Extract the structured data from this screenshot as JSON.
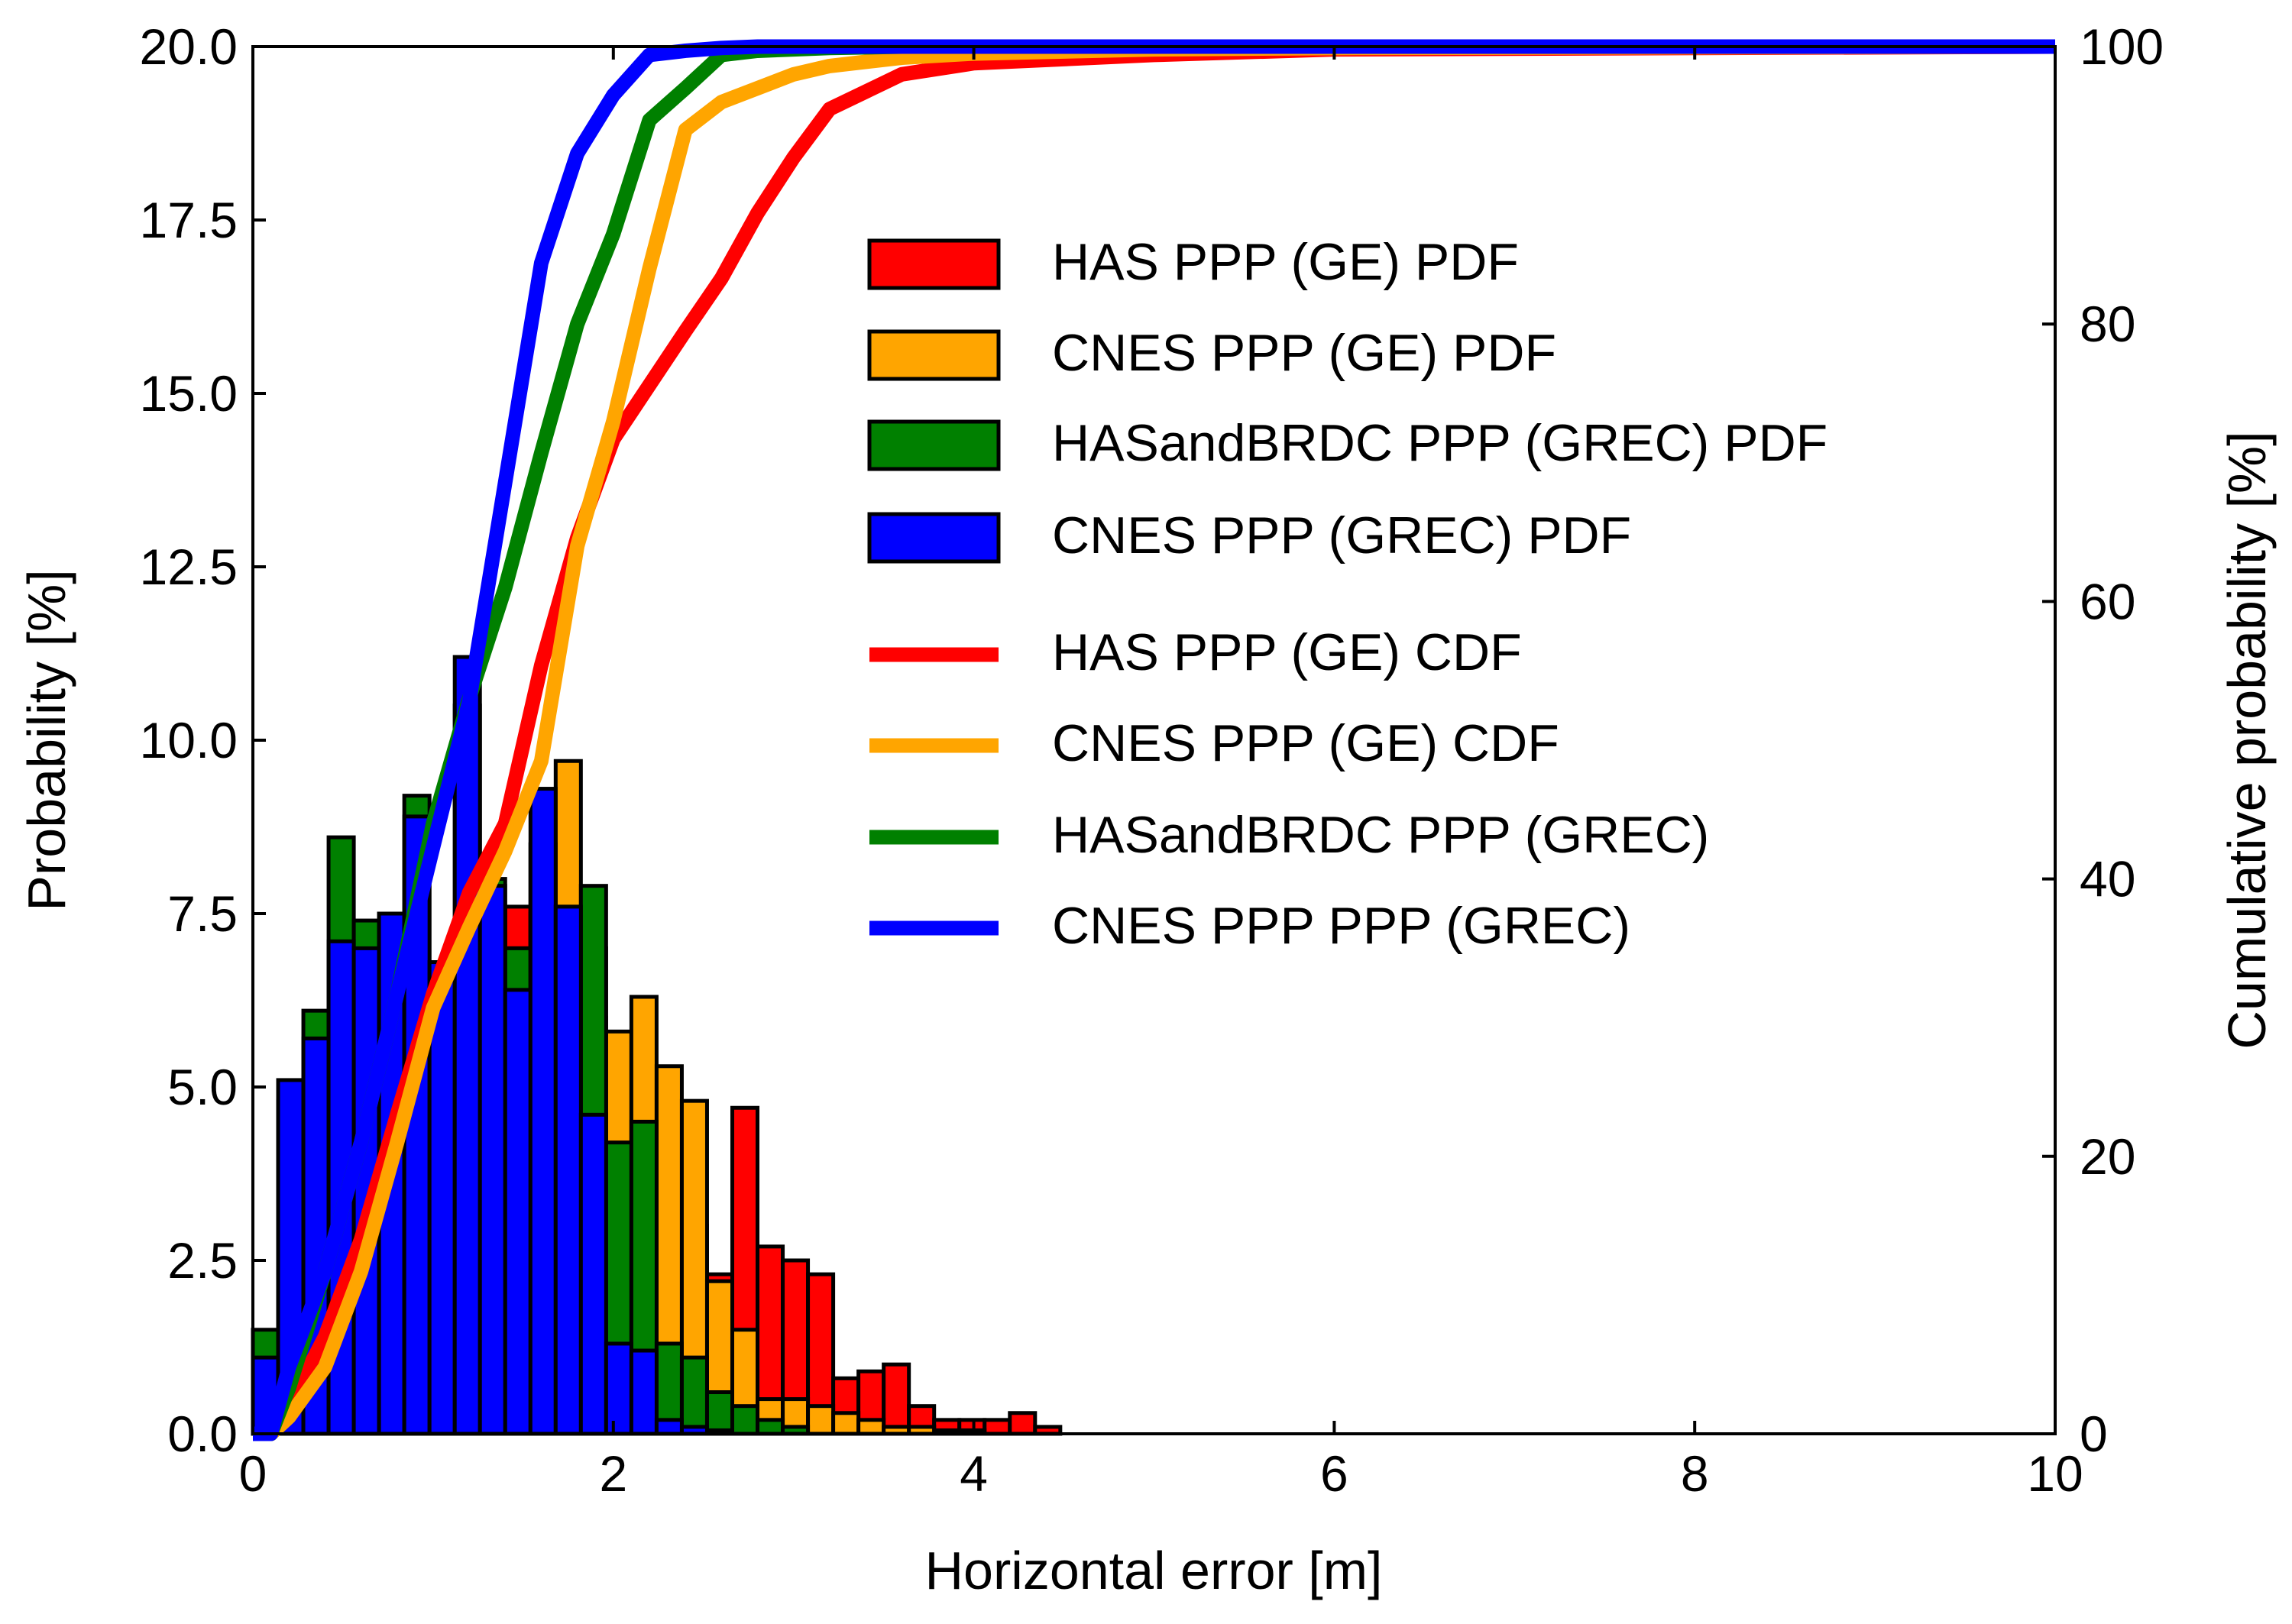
{
  "chart_data": {
    "type": "histogram",
    "xlabel": "Horizontal error [m]",
    "ylabel": "Probability [%]",
    "y2label": "Cumulative probability [%]",
    "xlim": [
      0,
      10
    ],
    "xticks": [
      0,
      2,
      4,
      6,
      8,
      10
    ],
    "ylim": [
      0,
      20
    ],
    "yticks": [
      {
        "value": 0,
        "label": "0.0"
      },
      {
        "value": 2.5,
        "label": "2.5"
      },
      {
        "value": 5,
        "label": "5.0"
      },
      {
        "value": 7.5,
        "label": "7.5"
      },
      {
        "value": 10,
        "label": "10.0"
      },
      {
        "value": 12.5,
        "label": "12.5"
      },
      {
        "value": 15,
        "label": "15.0"
      },
      {
        "value": 17.5,
        "label": "17.5"
      },
      {
        "value": 20,
        "label": "20.0"
      }
    ],
    "y2lim": [
      0,
      100
    ],
    "y2ticks": [
      0,
      20,
      40,
      60,
      80,
      100
    ],
    "legend": "upper right",
    "bins": [
      0,
      0.14,
      0.28,
      0.42,
      0.56,
      0.7,
      0.84,
      0.98,
      1.12,
      1.26,
      1.4,
      1.54,
      1.68,
      1.82,
      1.96,
      2.1,
      2.24,
      2.38,
      2.52,
      2.66,
      2.8,
      2.94,
      3.08,
      3.22,
      3.36,
      3.5,
      3.64,
      3.78,
      3.92,
      4.06,
      4.2,
      4.34,
      4.48
    ],
    "series": [
      {
        "name": "HAS PPP (GE) PDF",
        "color": "#ff0000",
        "values": [
          0.6,
          2.0,
          3.0,
          4.0,
          4.5,
          5.0,
          5.5,
          5.8,
          6.5,
          7.0,
          7.6,
          7.0,
          6.5,
          6.0,
          5.0,
          4.0,
          3.5,
          3.0,
          2.3,
          4.7,
          2.7,
          2.5,
          2.3,
          0.8,
          0.9,
          1.0,
          0.4,
          0.2,
          0.2,
          0.2,
          0.3,
          0.1
        ]
      },
      {
        "name": "CNES PPP (GE) PDF",
        "color": "#ffa500",
        "values": [
          0.5,
          1.5,
          2.5,
          3.5,
          4.0,
          4.5,
          5.5,
          5.5,
          6.0,
          6.5,
          7.0,
          7.5,
          9.7,
          7.0,
          5.8,
          6.3,
          5.3,
          4.8,
          2.2,
          1.5,
          0.5,
          0.5,
          0.4,
          0.3,
          0.2,
          0.1,
          0.1,
          0.05,
          0.05,
          0,
          0,
          0
        ]
      },
      {
        "name": "HASandBRDC PPP (GREC) PDF",
        "color": "#008000",
        "values": [
          1.5,
          4.8,
          6.1,
          8.6,
          7.4,
          7.5,
          9.2,
          6.8,
          10.5,
          8.0,
          7.0,
          8.5,
          7.6,
          7.9,
          4.2,
          4.5,
          1.3,
          1.1,
          0.6,
          0.4,
          0.2,
          0.1,
          0,
          0,
          0,
          0,
          0,
          0,
          0,
          0,
          0,
          0
        ]
      },
      {
        "name": "CNES PPP (GREC) PDF",
        "color": "#0000ff",
        "values": [
          1.1,
          5.1,
          5.7,
          7.1,
          7.0,
          7.5,
          8.9,
          6.8,
          11.2,
          7.9,
          6.4,
          9.3,
          7.6,
          4.6,
          1.3,
          1.2,
          0.2,
          0.1,
          0.05,
          0,
          0,
          0,
          0,
          0,
          0,
          0,
          0,
          0,
          0,
          0,
          0,
          0
        ]
      }
    ],
    "cdf_series": [
      {
        "name": "HAS PPP (GE) CDF",
        "color": "#ff0000",
        "axis": "y2",
        "x": [
          0,
          0.1,
          0.2,
          0.4,
          0.6,
          0.8,
          1.0,
          1.2,
          1.4,
          1.6,
          1.8,
          2.0,
          2.2,
          2.4,
          2.6,
          2.8,
          3.0,
          3.2,
          3.6,
          4.0,
          5.0,
          6.0,
          10
        ],
        "values": [
          0,
          0,
          2,
          7,
          14,
          23,
          31.7,
          39,
          44,
          55.4,
          64.6,
          71.7,
          75.6,
          79.5,
          83.3,
          88,
          92,
          95.5,
          98,
          98.8,
          99.4,
          99.8,
          100
        ]
      },
      {
        "name": "CNES PPP (GE) CDF",
        "color": "#ffa500",
        "axis": "y2",
        "x": [
          0,
          0.1,
          0.2,
          0.4,
          0.6,
          0.8,
          1.0,
          1.2,
          1.4,
          1.6,
          1.8,
          2.0,
          2.2,
          2.4,
          2.6,
          2.8,
          3.0,
          3.2,
          3.6,
          4.0,
          5.0,
          6.0,
          10
        ],
        "values": [
          0,
          0,
          1.2,
          4.8,
          11.7,
          21,
          30.7,
          36.5,
          42,
          48.5,
          64,
          73,
          84,
          94,
          96,
          97,
          98,
          98.6,
          99.2,
          99.5,
          99.8,
          99.9,
          100
        ]
      },
      {
        "name": "HASandBRDC PPP (GREC)",
        "color": "#008000",
        "axis": "y2",
        "x": [
          0,
          0.1,
          0.2,
          0.4,
          0.6,
          0.8,
          1.0,
          1.2,
          1.4,
          1.6,
          1.8,
          2.0,
          2.2,
          2.4,
          2.6,
          2.8,
          3.0,
          3.2,
          3.6,
          4.0,
          5.0,
          6.0,
          10
        ],
        "values": [
          0,
          0,
          3.3,
          11.7,
          21,
          31.7,
          44,
          53,
          61,
          70.7,
          80,
          86.5,
          94.7,
          97,
          99.4,
          99.7,
          99.8,
          99.9,
          100,
          100,
          100,
          100,
          100
        ]
      },
      {
        "name": "CNES PPP PPP (GREC)",
        "color": "#0000ff",
        "axis": "y2",
        "x": [
          0,
          0.1,
          0.2,
          0.4,
          0.6,
          0.8,
          1.0,
          1.2,
          1.4,
          1.6,
          1.8,
          2.0,
          2.2,
          2.4,
          2.6,
          2.8,
          3.0,
          3.2,
          3.6,
          4.0,
          5.0,
          6.0,
          10
        ],
        "values": [
          0,
          0,
          4.8,
          11.7,
          21,
          31.7,
          42.3,
          52.8,
          68.6,
          84.4,
          92.3,
          96.5,
          99.4,
          99.7,
          99.9,
          100,
          100,
          100,
          100,
          100,
          100,
          100,
          100
        ]
      }
    ]
  }
}
